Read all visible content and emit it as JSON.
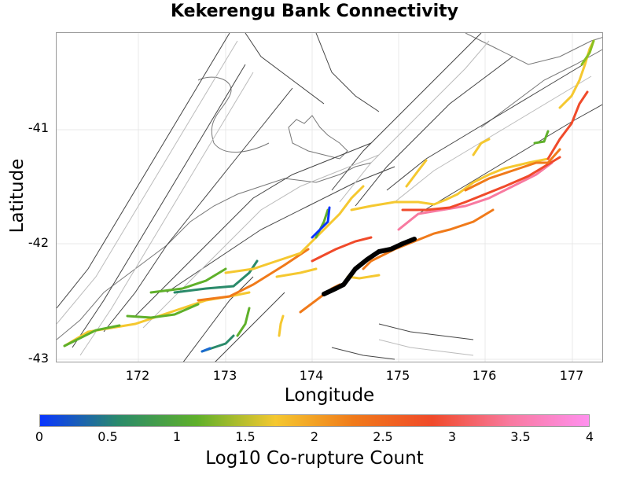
{
  "title": "Kekerengu Bank Connectivity",
  "map": {
    "xlabel": "Longitude",
    "ylabel": "Latitude",
    "x_ticks": [
      "172",
      "173",
      "174",
      "175",
      "176",
      "177"
    ],
    "y_ticks": [
      "-41",
      "-42",
      "-43"
    ]
  },
  "colorbar": {
    "label": "Log10 Co-rupture Count",
    "ticks": [
      "0",
      "0.5",
      "1",
      "1.5",
      "2",
      "2.5",
      "3",
      "3.5",
      "4"
    ],
    "colors": [
      "#0a35ff",
      "#2a8a6a",
      "#5fb02a",
      "#f5c830",
      "#f07a1a",
      "#f04a2a",
      "#f87aa0",
      "#ff90ee"
    ]
  },
  "legend": {
    "highlighted_section": "Kekerengu Bank",
    "highlight_color": "#000000"
  }
}
